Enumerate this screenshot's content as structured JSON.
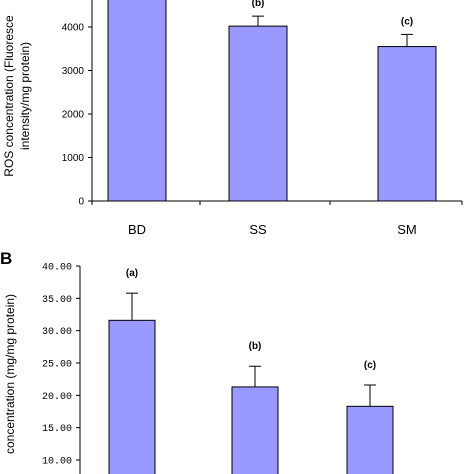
{
  "chart_data": [
    {
      "type": "bar",
      "panel": "",
      "categories": [
        "BD",
        "SS",
        "SM"
      ],
      "values": [
        4800,
        4020,
        3550
      ],
      "errors": [
        0,
        230,
        280
      ],
      "labels": [
        "",
        "(b)",
        "(c)"
      ],
      "ylabel_lines": [
        "ROS concentration (Fluoresce",
        "intensity/mg protein)"
      ],
      "yticks": [
        "0",
        "1000",
        "2000",
        "3000",
        "4000"
      ],
      "ylim": [
        0,
        4800
      ],
      "bar_color": "#9999ff"
    },
    {
      "type": "bar",
      "panel": "B",
      "categories": [],
      "values": [
        31.6,
        21.3,
        18.3
      ],
      "errors": [
        4.2,
        3.2,
        3.3
      ],
      "labels": [
        "(a)",
        "(b)",
        "(c)"
      ],
      "ylabel_lines": [
        "concentration (mg/mg  protein)"
      ],
      "yticks": [
        "10.00",
        "15.00",
        "20.00",
        "25.00",
        "30.00",
        "35.00",
        "40.00"
      ],
      "ylim": [
        10,
        40
      ],
      "bar_color": "#9999ff"
    }
  ]
}
